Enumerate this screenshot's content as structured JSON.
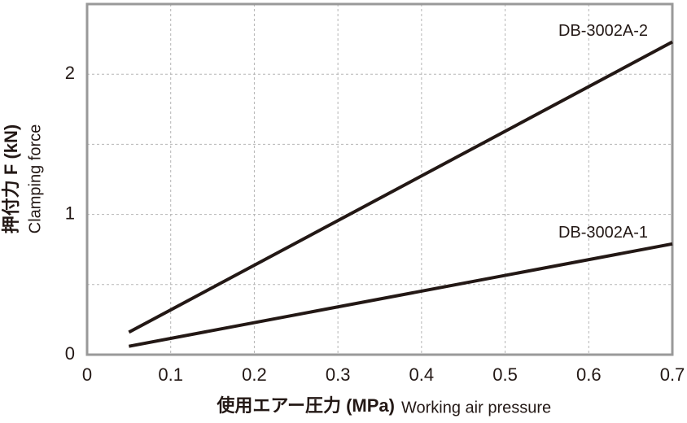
{
  "chart_data": {
    "type": "line",
    "y_title": "押付力 F (kN)",
    "y_subtitle": "Clamping force",
    "x_title": "使用エアー圧力 (MPa)",
    "x_subtitle": "Working air pressure",
    "xlim": [
      0,
      0.7
    ],
    "xticks": [
      0,
      0.1,
      0.2,
      0.3,
      0.4,
      0.5,
      0.6,
      0.7
    ],
    "ylim": [
      0,
      2.5
    ],
    "yticks": [
      0,
      1,
      2
    ],
    "minor_yticks": [
      0.5,
      1.5
    ],
    "grid": true,
    "series": [
      {
        "name": "DB-3002A-2",
        "color": "#231815",
        "x": [
          0.05,
          0.7
        ],
        "values": [
          0.16,
          2.23
        ]
      },
      {
        "name": "DB-3002A-1",
        "color": "#231815",
        "x": [
          0.05,
          0.7
        ],
        "values": [
          0.06,
          0.79
        ]
      }
    ]
  }
}
